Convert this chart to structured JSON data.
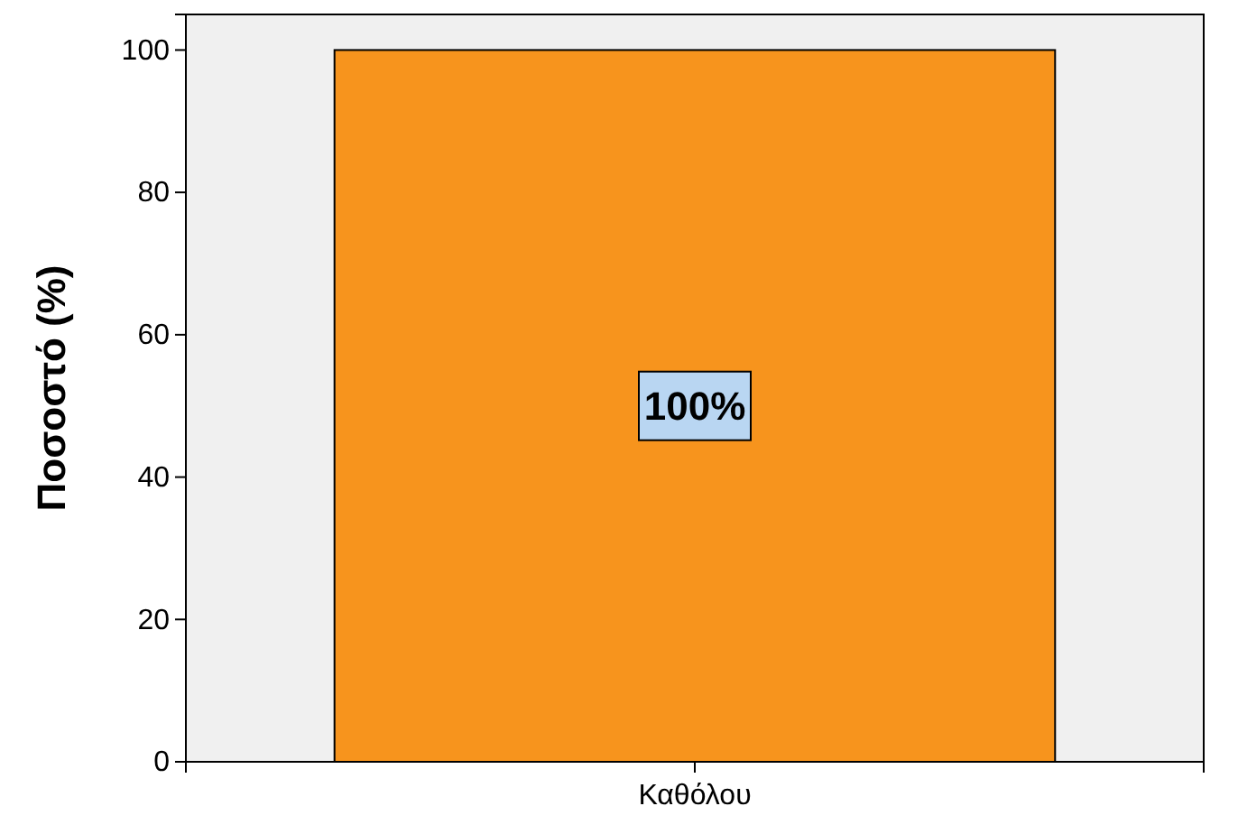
{
  "chart_data": {
    "type": "bar",
    "ylabel": "Ποσοστό (%)",
    "categories": [
      "Καθόλου"
    ],
    "values": [
      100
    ],
    "value_labels": [
      "100%"
    ],
    "color": "#f7941d",
    "ylim": [
      0,
      105
    ],
    "yticks": [
      0,
      20,
      40,
      60,
      80,
      100
    ],
    "grid": false,
    "legend": false
  }
}
